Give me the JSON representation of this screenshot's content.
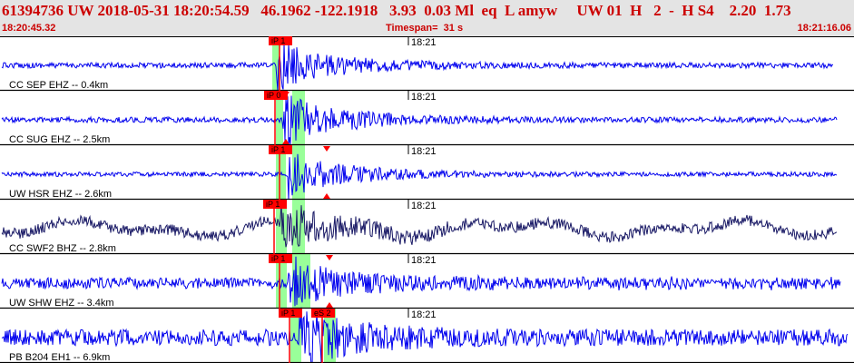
{
  "header": {
    "title": "61394736 UW 2018-05-31 18:20:54.59   46.1962 -122.1918   3.93  0.03 Ml  eq  L amyw     UW 01  H   2  -  H S4    2.20  1.73",
    "start_time": "18:20:45.32",
    "timespan": "Timespan=  31 s",
    "end_time": "18:21:16.06"
  },
  "colors": {
    "trace": "#0000ee",
    "trace_dark": "#1a1a66",
    "pick_box": "#ff0000",
    "window": "#99ff99",
    "header_bg": "#e4e4e4",
    "header_text": "#cc0000"
  },
  "minute_marker": "18:21",
  "channels": [
    {
      "label": "CC SEP EHZ -- 0.4km",
      "pick": "iP 1",
      "color": "trace"
    },
    {
      "label": "CC SUG EHZ -- 2.5km",
      "pick": "iP 0",
      "color": "trace"
    },
    {
      "label": "UW HSR EHZ -- 2.6km",
      "pick": "iP 1",
      "color": "trace"
    },
    {
      "label": "CC SWF2 BHZ -- 2.8km",
      "pick": "iP 1",
      "color": "trace_dark"
    },
    {
      "label": "UW SHW EHZ -- 3.4km",
      "pick": "iP 1",
      "color": "trace"
    },
    {
      "label": "PB B204 EH1 -- 6.9km",
      "pick": "iP 1",
      "pick2": "eS 2",
      "color": "trace"
    }
  ]
}
